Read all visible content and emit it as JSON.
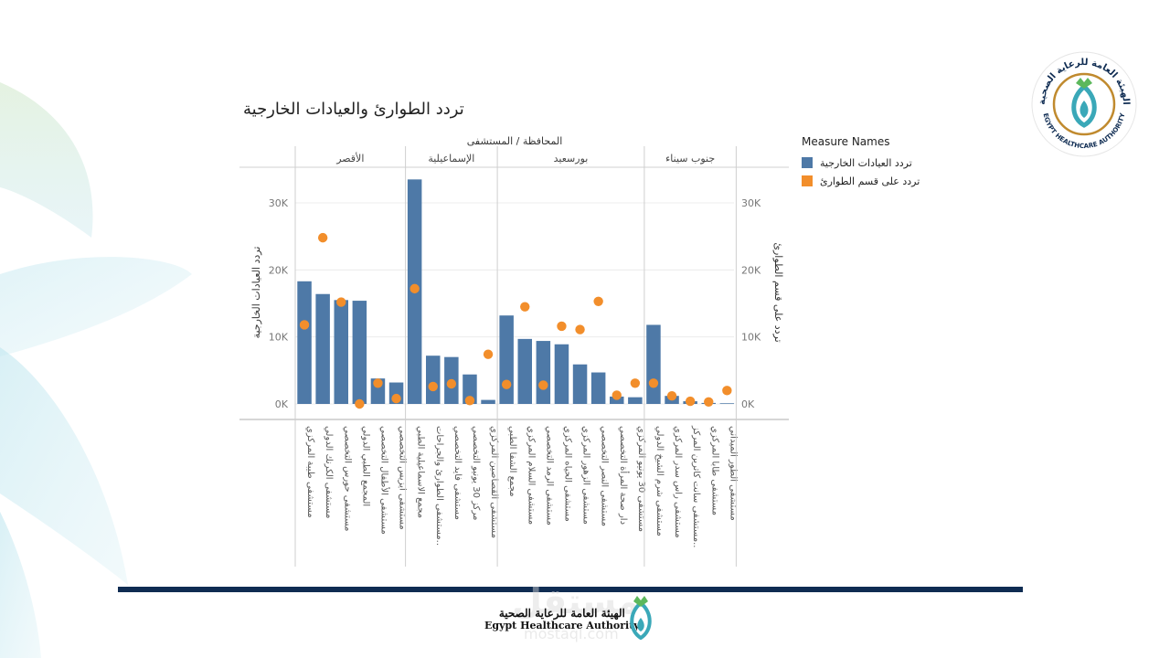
{
  "title": "تردد الطوارئ والعيادات الخارجية",
  "legend": {
    "title": "Measure Names",
    "items": [
      {
        "label": "تردد العيادات الخارجية",
        "color": "#4e79a7"
      },
      {
        "label": "تردد على قسم الطوارئ",
        "color": "#f28e2b"
      }
    ]
  },
  "footer": {
    "arabic": "الهيئة العامة للرعاية الصحية",
    "english": "Egypt Healthcare Authority",
    "watermark": "مستقل",
    "watermark_sub": "mostaql.com"
  },
  "logo": {
    "arabic_ring": "الهيئة العامة للرعاية الصحية",
    "english_ring": "EGYPT HEALTHCARE AUTHORITY"
  },
  "colors": {
    "bar": "#4e79a7",
    "dot": "#f28e2b",
    "navy": "#0f2c52",
    "teal": "#3aa8b8",
    "gold": "#c08a2e"
  },
  "chart_data": {
    "type": "bar",
    "column_header": "المحافظة / المستشفى",
    "ylabel_left": "تردد العيادات الخارجية",
    "ylabel_right": "تردد على قسم الطوارئ",
    "yticks": [
      "0K",
      "10K",
      "20K",
      "30K"
    ],
    "ylim": [
      0,
      35000
    ],
    "groups": [
      {
        "name": "الأقصر",
        "hospitals": [
          "مستشفى طيبة المركزي",
          "مستشفى الكرنك الدولي",
          "مستشفى حورس التخصصي",
          "المجمع الطبي الدولي",
          "مستشفى الأطفال التخصصي",
          "مستشفى ايزيس التخصصي"
        ],
        "outpatient": [
          18300,
          16400,
          15500,
          15400,
          3800,
          3200
        ],
        "emergency": [
          11800,
          24800,
          15200,
          0,
          3100,
          800
        ]
      },
      {
        "name": "الإسماعيلية",
        "hospitals": [
          "مجمع الاسماعيلية الطبي",
          "مستشفى الطوارئ والجراحات..",
          "مستشفى فايد التخصصي",
          "مركز 30 يونيو التخصصي",
          "مستشفى القصاصين المركزي"
        ],
        "outpatient": [
          33500,
          7200,
          7000,
          4400,
          600
        ],
        "emergency": [
          17200,
          2600,
          3000,
          500,
          7400
        ]
      },
      {
        "name": "بورسعيد",
        "hospitals": [
          "مجمع الشفا الطبي",
          "مستشفى السلام المركزي",
          "مستشفى الرمد التخصصي",
          "مستشفى الحياه المركزي",
          "مستشفى الزهور المركزي",
          "مستشفى النصر التخصصي",
          "دار صحة المرأة التخصصي",
          "مستشفى 30 يونيو المركزي"
        ],
        "outpatient": [
          13200,
          9700,
          9400,
          8900,
          5900,
          4700,
          1100,
          1000
        ],
        "emergency": [
          2900,
          14500,
          2800,
          11600,
          11100,
          15300,
          1300,
          3100
        ]
      },
      {
        "name": "جنوب سيناء",
        "hospitals": [
          "مستشفى شرم الشيخ الدولي",
          "مستشفى راس سدر المركزي",
          "مستشفى سانت كاترين المركز..",
          "مستشفى طابا المركزي",
          "مستشفى الطور الميداني"
        ],
        "outpatient": [
          11800,
          1200,
          400,
          150,
          100
        ],
        "emergency": [
          3100,
          1200,
          400,
          300,
          2000
        ]
      }
    ]
  }
}
